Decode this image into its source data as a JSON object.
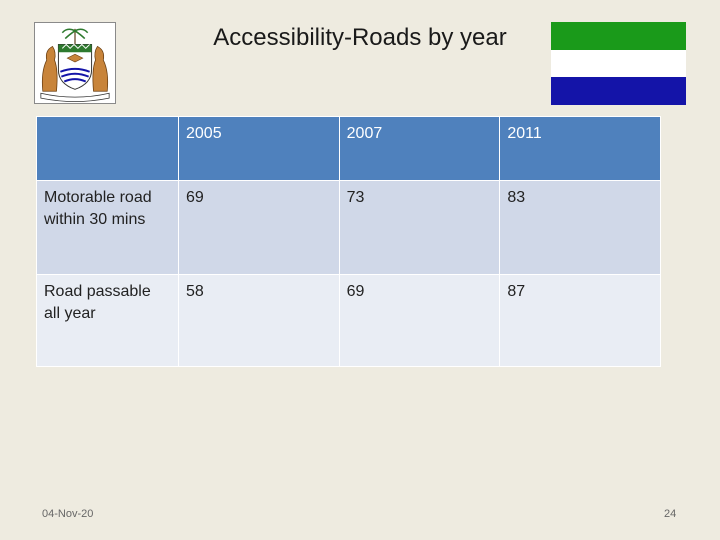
{
  "slide": {
    "title": "Accessibility-Roads by year",
    "footer_date": "04-Nov-20",
    "page_number": "24"
  },
  "emblem": {
    "icon": "coat-of-arms-icon"
  },
  "flag": {
    "colors": [
      "#1a9a1a",
      "#ffffff",
      "#1414a8"
    ]
  },
  "table": {
    "headers": [
      "",
      "2005",
      "2007",
      "2011"
    ],
    "rows": [
      {
        "label": "Motorable road within 30 mins",
        "values": [
          "69",
          "73",
          "83"
        ]
      },
      {
        "label": "Road passable all year",
        "values": [
          "58",
          "69",
          "87"
        ]
      }
    ]
  }
}
